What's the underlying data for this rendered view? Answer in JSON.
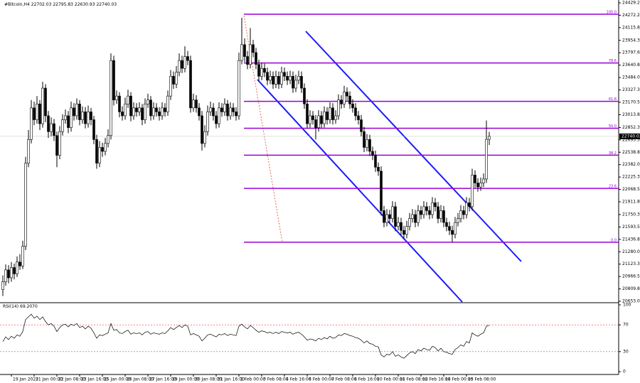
{
  "chart_data": {
    "type": "candlestick",
    "symbol": "#Bitcoin,H4",
    "categories": [
      null,
      null,
      null,
      "19 Jan 2023",
      null,
      null,
      null,
      null,
      null,
      null,
      null,
      "21 Jan 00:00",
      null,
      null,
      null,
      null,
      null,
      null,
      null,
      "22 Jan 08:00",
      null,
      null,
      null,
      null,
      null,
      null,
      null,
      "23 Jan 16:00",
      null,
      null,
      null,
      null,
      null,
      null,
      null,
      "25 Jan 00:00",
      null,
      null,
      null,
      null,
      null,
      null,
      null,
      "26 Jan 08:00",
      null,
      null,
      null,
      null,
      null,
      null,
      null,
      "27 Jan 16:00",
      null,
      null,
      null,
      null,
      null,
      null,
      null,
      "29 Jan 00:00",
      null,
      null,
      null,
      null,
      null,
      null,
      null,
      "30 Jan 08:00",
      null,
      null,
      null,
      null,
      null,
      null,
      null,
      "31 Jan 16:00",
      null,
      null,
      null,
      null,
      null,
      null,
      null,
      "2 Feb 00:00",
      null,
      null,
      null,
      null,
      null,
      null,
      null,
      "3 Feb 08:00",
      null,
      null,
      null,
      null,
      null,
      null,
      null,
      "4 Feb 16:00",
      null,
      null,
      null,
      null,
      null,
      null,
      null,
      "6 Feb 00:00",
      null,
      null,
      null,
      null,
      null,
      null,
      null,
      "7 Feb 08:00",
      null,
      null,
      null,
      null,
      null,
      null,
      null,
      "8 Feb 16:00",
      null,
      null,
      null,
      null,
      null,
      null,
      null,
      "10 Feb 00:00",
      null,
      null,
      null,
      null,
      null,
      null,
      null,
      "11 Feb 08:00",
      null,
      null,
      null,
      null,
      null,
      null,
      null,
      "12 Feb 16:00",
      null,
      null,
      null,
      null,
      null,
      null,
      null,
      "14 Feb 00:00",
      null,
      null,
      null,
      null,
      null,
      null,
      null,
      "15 Feb 08:00",
      null,
      null,
      null,
      null,
      null,
      null,
      null,
      null
    ],
    "open": [
      20800,
      20900,
      21050,
      20950,
      21080,
      21000,
      21150,
      21100,
      21350,
      22400,
      22700,
      23100,
      22950,
      23150,
      22900,
      23350,
      23000,
      22800,
      22900,
      22750,
      22500,
      22800,
      22950,
      23000,
      22850,
      23100,
      23000,
      23150,
      22950,
      23050,
      22900,
      23050,
      22950,
      22700,
      22400,
      22600,
      22550,
      22650,
      22750,
      23700,
      23200,
      23250,
      23050,
      23000,
      23150,
      23250,
      23000,
      23100,
      23050,
      23100,
      22950,
      23150,
      23200,
      23000,
      23100,
      23050,
      23000,
      23100,
      23050,
      23250,
      23500,
      23400,
      23550,
      23700,
      23600,
      23750,
      23700,
      23100,
      23200,
      23100,
      23000,
      22650,
      22800,
      23050,
      23100,
      23000,
      22900,
      23100,
      23050,
      23150,
      23000,
      23100,
      23050,
      23000,
      23700,
      23900,
      23750,
      23650,
      23900,
      23800,
      23650,
      23500,
      23600,
      23550,
      23450,
      23500,
      23400,
      23500,
      23400,
      23550,
      23500,
      23450,
      23500,
      23350,
      23450,
      23500,
      23350,
      23150,
      22900,
      23000,
      22950,
      22850,
      23000,
      22900,
      23050,
      22950,
      23100,
      22950,
      23000,
      23200,
      23150,
      23300,
      23250,
      23150,
      23100,
      23000,
      22950,
      22800,
      22600,
      22700,
      22550,
      22500,
      22350,
      22300,
      21800,
      21650,
      21750,
      21700,
      21850,
      21600,
      21650,
      21550,
      21500,
      21600,
      21700,
      21750,
      21650,
      21800,
      21750,
      21850,
      21800,
      21750,
      21900,
      21850,
      21700,
      21800,
      21650,
      21600,
      21550,
      21500,
      21650,
      21700,
      21800,
      21750,
      21900,
      21850,
      22250,
      22150,
      22100,
      22150,
      22200,
      22702.03
    ],
    "high": [
      20980,
      21120,
      21110,
      21150,
      21130,
      21220,
      21250,
      21420,
      22480,
      22820,
      23200,
      23180,
      23250,
      23200,
      23430,
      23400,
      23060,
      22980,
      22960,
      22800,
      22870,
      23020,
      23080,
      23060,
      23180,
      23160,
      23220,
      23200,
      23120,
      23110,
      23130,
      23100,
      23000,
      22760,
      22680,
      22660,
      22720,
      22830,
      23790,
      23760,
      23320,
      23300,
      23120,
      23230,
      23330,
      23300,
      23170,
      23160,
      23170,
      23150,
      23220,
      23280,
      23250,
      23170,
      23160,
      23110,
      23170,
      23160,
      23320,
      23580,
      23560,
      23630,
      23790,
      23760,
      23880,
      23820,
      23760,
      23280,
      23260,
      23160,
      23060,
      22880,
      23130,
      23180,
      23160,
      23060,
      23170,
      23160,
      23220,
      23200,
      23170,
      23160,
      23110,
      23800,
      24240,
      23980,
      23820,
      24110,
      23960,
      23860,
      23710,
      23670,
      23660,
      23610,
      23570,
      23560,
      23570,
      23560,
      23620,
      23610,
      23560,
      23570,
      23560,
      23520,
      23570,
      23560,
      23410,
      23210,
      23070,
      23060,
      23010,
      23070,
      23060,
      23120,
      23110,
      23170,
      23160,
      23070,
      23270,
      23260,
      23380,
      23360,
      23310,
      23210,
      23160,
      23060,
      23010,
      22860,
      22770,
      22760,
      22610,
      22560,
      22410,
      22360,
      21860,
      21820,
      21810,
      21920,
      21910,
      21720,
      21710,
      21610,
      21670,
      21770,
      21820,
      21810,
      21870,
      21860,
      21920,
      21910,
      21860,
      21970,
      21960,
      21910,
      21870,
      21860,
      21710,
      21660,
      21610,
      21720,
      21770,
      21870,
      21860,
      21970,
      21960,
      22330,
      22310,
      22210,
      22220,
      22270,
      22940,
      22795.83
    ],
    "low": [
      20720,
      20850,
      20880,
      20900,
      20930,
      20960,
      21050,
      21060,
      21300,
      22350,
      22650,
      22880,
      22900,
      22820,
      22850,
      22920,
      22720,
      22740,
      22680,
      22350,
      22450,
      22750,
      22900,
      22780,
      22800,
      22940,
      22950,
      22880,
      22900,
      22840,
      22850,
      22880,
      22640,
      22330,
      22350,
      22480,
      22500,
      22600,
      22700,
      23130,
      23150,
      22980,
      22940,
      22950,
      23100,
      22930,
      22950,
      22990,
      23000,
      22880,
      22900,
      23100,
      22940,
      22950,
      22990,
      22940,
      22950,
      22990,
      23000,
      23200,
      23340,
      23350,
      23500,
      23540,
      23550,
      23640,
      23040,
      23050,
      23040,
      22940,
      22560,
      22600,
      22750,
      23000,
      22940,
      22840,
      22850,
      22990,
      23000,
      22940,
      22950,
      22990,
      22940,
      22950,
      23650,
      23680,
      23590,
      23600,
      23740,
      23590,
      23440,
      23450,
      23490,
      23390,
      23400,
      23340,
      23350,
      23340,
      23350,
      23440,
      23390,
      23400,
      23290,
      23300,
      23400,
      23290,
      23090,
      22840,
      22850,
      22890,
      22700,
      22800,
      22840,
      22850,
      22890,
      22900,
      22890,
      22900,
      22950,
      23090,
      23100,
      23190,
      23090,
      23040,
      22940,
      22890,
      22740,
      22540,
      22550,
      22490,
      22440,
      22290,
      22240,
      21740,
      21590,
      21600,
      21640,
      21650,
      21540,
      21550,
      21490,
      21440,
      21450,
      21550,
      21650,
      21590,
      21600,
      21690,
      21700,
      21740,
      21690,
      21700,
      21790,
      21640,
      21650,
      21590,
      21540,
      21490,
      21400,
      21450,
      21600,
      21650,
      21690,
      21700,
      21790,
      21800,
      22090,
      22040,
      22050,
      22100,
      22150,
      22630.93
    ],
    "close": [
      20900,
      21050,
      20950,
      21080,
      21000,
      21150,
      21100,
      21350,
      22400,
      22700,
      23100,
      22950,
      23150,
      22900,
      23350,
      23000,
      22800,
      22900,
      22750,
      22500,
      22800,
      22950,
      23000,
      22850,
      23100,
      23000,
      23150,
      22950,
      23050,
      22900,
      23050,
      22950,
      22700,
      22400,
      22600,
      22550,
      22650,
      22750,
      23700,
      23200,
      23250,
      23050,
      23000,
      23150,
      23250,
      23000,
      23100,
      23050,
      23100,
      22950,
      23150,
      23200,
      23000,
      23100,
      23050,
      23000,
      23100,
      23050,
      23250,
      23500,
      23400,
      23550,
      23700,
      23600,
      23750,
      23700,
      23100,
      23200,
      23100,
      23000,
      22650,
      22800,
      23050,
      23100,
      23000,
      22900,
      23100,
      23050,
      23150,
      23000,
      23100,
      23050,
      23000,
      23700,
      23900,
      23750,
      23650,
      23900,
      23800,
      23650,
      23500,
      23600,
      23550,
      23450,
      23500,
      23400,
      23500,
      23400,
      23550,
      23500,
      23450,
      23500,
      23350,
      23450,
      23500,
      23350,
      23150,
      22900,
      23000,
      22950,
      22850,
      23000,
      22900,
      23050,
      22950,
      23100,
      22950,
      23000,
      23200,
      23150,
      23300,
      23250,
      23150,
      23100,
      23000,
      22950,
      22800,
      22600,
      22700,
      22550,
      22500,
      22350,
      22300,
      21800,
      21650,
      21750,
      21700,
      21850,
      21600,
      21650,
      21550,
      21500,
      21600,
      21700,
      21750,
      21650,
      21800,
      21750,
      21850,
      21800,
      21750,
      21900,
      21850,
      21700,
      21800,
      21650,
      21600,
      21550,
      21500,
      21650,
      21700,
      21800,
      21750,
      21900,
      21850,
      22250,
      22150,
      22100,
      22150,
      22200,
      22702.03,
      22740.03
    ],
    "up_color": "#ffffff",
    "down_color": "#000000",
    "ylim": [
      20653.05,
      24429.2
    ],
    "yticks": [
      {
        "value": 24429.2,
        "label": "24429.20"
      },
      24272.25,
      {
        "value": 24115.8,
        "label": "24115.80"
      },
      {
        "value": 23954.3,
        "label": "23954.30"
      },
      {
        "value": 23797.6,
        "label": "23797.60"
      },
      {
        "value": 23640.8,
        "label": "23640.80"
      },
      {
        "value": 23484,
        "label": "23484.00"
      },
      {
        "value": 23327.3,
        "label": "23327.30"
      },
      23170.55,
      {
        "value": 23013.8,
        "label": "23013.80"
      },
      {
        "value": 22852.3,
        "label": "22852.30"
      },
      22695.55,
      {
        "value": 22538.8,
        "label": "22538.80"
      },
      22382.05,
      {
        "value": 22225.3,
        "label": "22225.30"
      },
      22068.55,
      {
        "value": 21911.8,
        "label": "21911.80"
      },
      {
        "value": 21750.3,
        "label": "21750.30"
      },
      21593.55,
      {
        "value": 21436.8,
        "label": "21436.80"
      },
      21280.05,
      {
        "value": 21123.3,
        "label": "21123.30"
      },
      20966.55,
      {
        "value": 20809.8,
        "label": "20809.80"
      },
      20653.05
    ],
    "fib_color": "#9a00d6",
    "fib_levels": [
      {
        "label": "100.0",
        "value": 24285
      },
      {
        "label": "78.6",
        "value": 23668
      },
      {
        "label": "61.8",
        "value": 23183
      },
      {
        "label": "50.0",
        "value": 22842
      },
      {
        "label": "38.2",
        "value": 22502
      },
      {
        "label": "23.6",
        "value": 22081
      },
      {
        "label": "0.0",
        "value": 21400
      }
    ],
    "rsi": {
      "name": "RSI(14)",
      "value_label": "69.2070",
      "color": "#000000",
      "level_color": "#e0453a",
      "ylim": [
        0,
        100
      ],
      "yticks": [
        0,
        30,
        70,
        100
      ],
      "levels": [
        30,
        70
      ],
      "values": [
        45,
        52,
        48,
        53,
        50,
        55,
        53,
        60,
        78,
        82,
        86,
        80,
        83,
        78,
        82,
        75,
        70,
        72,
        68,
        60,
        66,
        70,
        71,
        67,
        71,
        69,
        72,
        66,
        68,
        64,
        68,
        65,
        58,
        50,
        55,
        54,
        56,
        58,
        72,
        62,
        63,
        58,
        57,
        60,
        62,
        56,
        58,
        57,
        58,
        55,
        59,
        60,
        56,
        58,
        57,
        56,
        58,
        57,
        61,
        66,
        63,
        66,
        69,
        66,
        70,
        68,
        55,
        57,
        55,
        53,
        46,
        50,
        55,
        56,
        54,
        52,
        56,
        55,
        57,
        54,
        56,
        55,
        54,
        68,
        71,
        67,
        64,
        69,
        66,
        62,
        59,
        61,
        60,
        58,
        59,
        57,
        59,
        57,
        60,
        59,
        58,
        59,
        56,
        58,
        59,
        56,
        52,
        47,
        49,
        48,
        46,
        50,
        48,
        51,
        49,
        53,
        50,
        51,
        55,
        54,
        57,
        56,
        54,
        53,
        51,
        50,
        47,
        43,
        46,
        42,
        41,
        38,
        37,
        25,
        22,
        26,
        25,
        30,
        23,
        25,
        22,
        20,
        24,
        28,
        30,
        27,
        33,
        31,
        35,
        33,
        32,
        38,
        36,
        31,
        35,
        30,
        29,
        27,
        26,
        33,
        36,
        40,
        38,
        45,
        43,
        58,
        55,
        53,
        56,
        58,
        68,
        69.207
      ]
    }
  }
}
